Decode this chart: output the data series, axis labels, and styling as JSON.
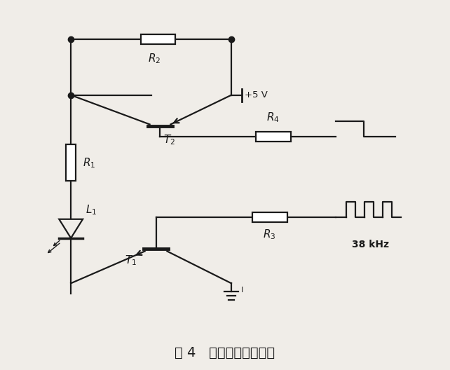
{
  "title": "图 4   动态光强控制电路",
  "title_fontsize": 14,
  "bg_color": "#f0ede8",
  "line_color": "#1a1a1a",
  "text_color": "#1a1a1a",
  "fig_width": 6.42,
  "fig_height": 5.28
}
